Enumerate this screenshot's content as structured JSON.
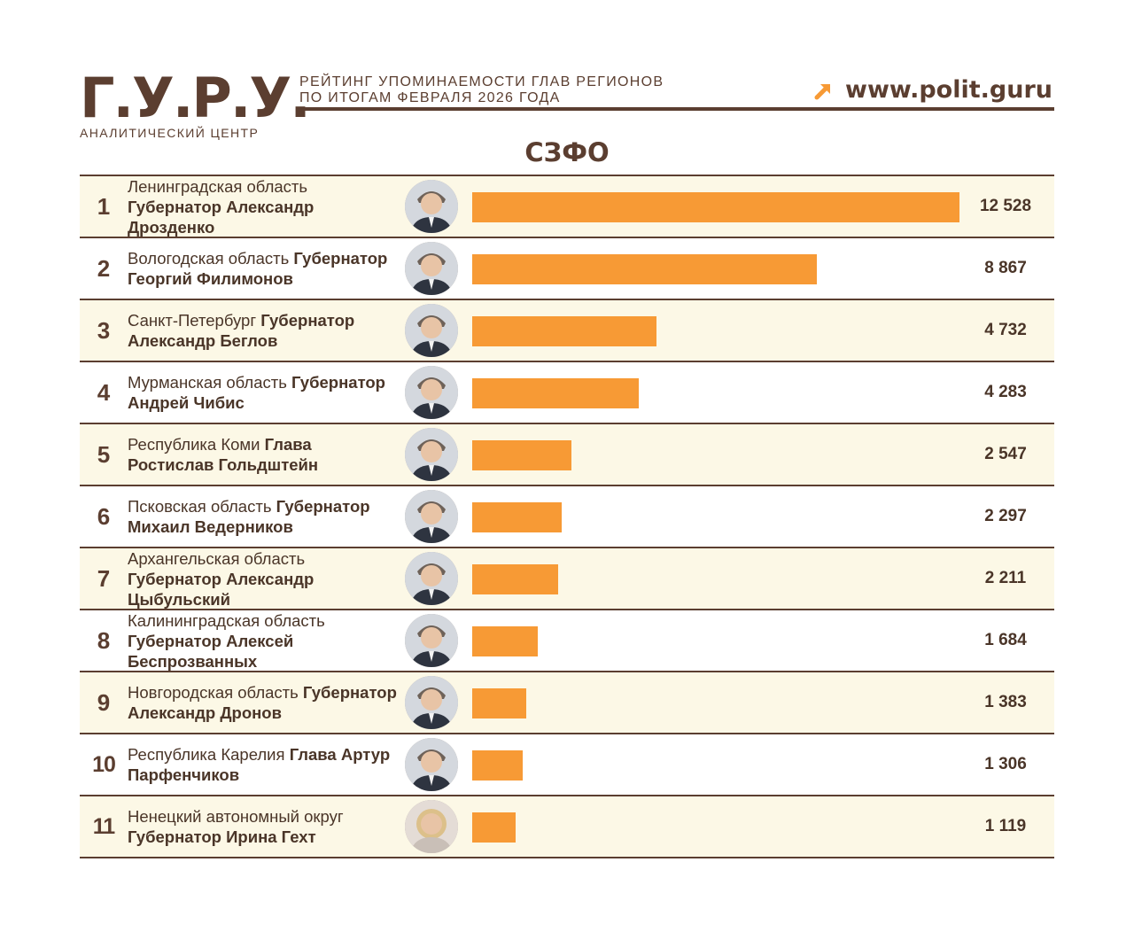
{
  "header": {
    "logo_mark": "Г.У.Р.У.",
    "logo_subtitle": "АНАЛИТИЧЕСКИЙ ЦЕНТР",
    "heading_line1": "РЕЙТИНГ УПОМИНАЕМОСТИ ГЛАВ РЕГИОНОВ",
    "heading_line2": "ПО ИТОГАМ ФЕВРАЛЯ 2026 ГОДА",
    "site_url": "www.polit.guru",
    "arrow_icon": "arrow-up-right-icon"
  },
  "colors": {
    "brand_brown": "#5b3e30",
    "bar_orange": "#f79a35",
    "row_tint": "#fcf8e6"
  },
  "chart_data": {
    "type": "bar",
    "orientation": "horizontal",
    "title": "СЗФО",
    "xlim": [
      0,
      12528
    ],
    "grid": false,
    "legend": "none",
    "rows": [
      {
        "rank": "1",
        "region": "Ленинградская область",
        "position": "Губернатор",
        "name": "Александр Дрозденко",
        "value": 12528,
        "value_label": "12 528"
      },
      {
        "rank": "2",
        "region": "Вологодская область",
        "position": "Губернатор",
        "name": "Георгий Филимонов",
        "value": 8867,
        "value_label": "8 867"
      },
      {
        "rank": "3",
        "region": "Санкт-Петербург",
        "position": "Губернатор",
        "name": "Александр Беглов",
        "value": 4732,
        "value_label": "4 732"
      },
      {
        "rank": "4",
        "region": "Мурманская область",
        "position": "Губернатор",
        "name": "Андрей Чибис",
        "value": 4283,
        "value_label": "4 283"
      },
      {
        "rank": "5",
        "region": "Республика Коми",
        "position": "Глава",
        "name": "Ростислав Гольдштейн",
        "value": 2547,
        "value_label": "2 547"
      },
      {
        "rank": "6",
        "region": "Псковская область",
        "position": "Губернатор",
        "name": "Михаил Ведерников",
        "value": 2297,
        "value_label": "2 297"
      },
      {
        "rank": "7",
        "region": "Архангельская область",
        "position": "Губернатор",
        "name": "Александр Цыбульский",
        "value": 2211,
        "value_label": "2 211"
      },
      {
        "rank": "8",
        "region": "Калининградская область",
        "position": "Губернатор",
        "name": "Алексей Беспрозванных",
        "value": 1684,
        "value_label": "1 684"
      },
      {
        "rank": "9",
        "region": "Новгородская область",
        "position": "Губернатор",
        "name": "Александр Дронов",
        "value": 1383,
        "value_label": "1 383"
      },
      {
        "rank": "10",
        "region": "Республика Карелия",
        "position": "Глава",
        "name": "Артур Парфенчиков",
        "value": 1306,
        "value_label": "1 306"
      },
      {
        "rank": "11",
        "region": "Ненецкий автономный округ",
        "position": "Губернатор",
        "name": "Ирина Гехт",
        "value": 1119,
        "value_label": "1 119"
      }
    ]
  }
}
